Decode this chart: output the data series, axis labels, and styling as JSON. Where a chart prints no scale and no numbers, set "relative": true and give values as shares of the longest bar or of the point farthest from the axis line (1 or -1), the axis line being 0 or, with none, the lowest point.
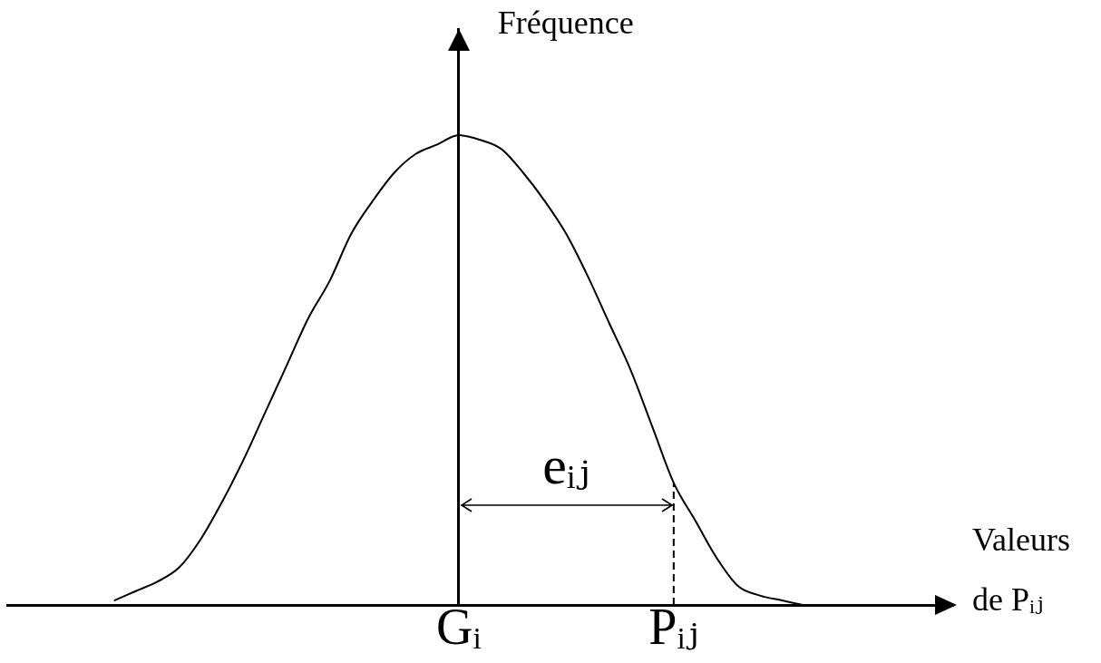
{
  "chart_data": {
    "type": "line",
    "xlabel": "Valeurs de Pᵢⱼ",
    "ylabel": "Fréquence",
    "relative": true,
    "categories": [
      null,
      null,
      null,
      null,
      null,
      null,
      null,
      null,
      null,
      null,
      null,
      null,
      null,
      null,
      null,
      null,
      null,
      null,
      null,
      null,
      null,
      "Gᵢ",
      null,
      null,
      null,
      null,
      null,
      null,
      null,
      null,
      null,
      "Pᵢⱼ",
      null,
      null,
      null,
      null,
      null,
      null,
      null,
      null,
      null,
      null,
      null,
      null,
      null
    ],
    "values": [
      null,
      null,
      null,
      null,
      null,
      0.01,
      0.03,
      0.05,
      0.08,
      0.14,
      0.22,
      0.31,
      0.41,
      0.51,
      0.61,
      0.69,
      0.79,
      0.86,
      0.92,
      0.96,
      0.98,
      1,
      0.99,
      0.97,
      0.92,
      0.86,
      0.79,
      0.7,
      0.6,
      0.5,
      0.38,
      0.26,
      0.18,
      0.1,
      0.04,
      0.02,
      0.01,
      0,
      null,
      null,
      null,
      null,
      null,
      null,
      null
    ],
    "color": "#000000",
    "line_style": "solid",
    "ref_lines": [
      {
        "axis": "x",
        "value": "Pᵢⱼ",
        "line_style": "dashed",
        "color": "#000000"
      }
    ],
    "annotations": [
      "eᵢⱼ"
    ]
  }
}
